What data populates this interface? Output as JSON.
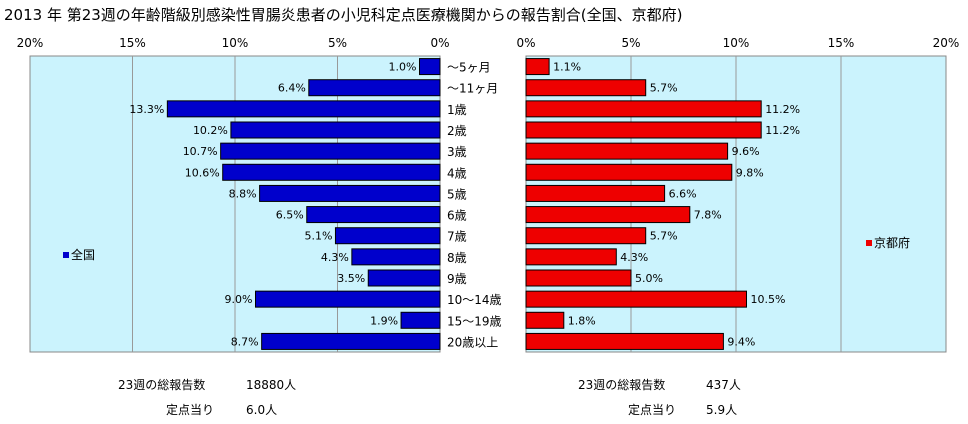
{
  "title": "2013 年 第23週の年齢階級別感染性胃腸炎患者の小児科定点医療機関からの報告割合(全国、京都府)",
  "chart_data": {
    "type": "bar",
    "orientation": "horizontal",
    "categories": [
      "～5ヶ月",
      "～11ヶ月",
      "1歳",
      "2歳",
      "3歳",
      "4歳",
      "5歳",
      "6歳",
      "7歳",
      "8歳",
      "9歳",
      "10～14歳",
      "15～19歳",
      "20歳以上"
    ],
    "unit": "%",
    "xlim": [
      0,
      20
    ],
    "xticks": [
      "20%",
      "15%",
      "10%",
      "5%",
      "0%"
    ],
    "xticks_right": [
      "0%",
      "5%",
      "10%",
      "15%",
      "20%"
    ],
    "grid": true,
    "series": [
      {
        "name": "全国",
        "color": "#0000cc",
        "plot_background": "#cbf3fd",
        "values": [
          1.0,
          6.4,
          13.3,
          10.2,
          10.7,
          10.6,
          8.8,
          6.5,
          5.1,
          4.3,
          3.5,
          9.0,
          1.9,
          8.7
        ],
        "labels": [
          "1.0%",
          "6.4%",
          "13.3%",
          "10.2%",
          "10.7%",
          "10.6%",
          "8.8%",
          "6.5%",
          "5.1%",
          "4.3%",
          "3.5%",
          "9.0%",
          "1.9%",
          "8.7%"
        ]
      },
      {
        "name": "京都府",
        "color": "#ee0000",
        "plot_background": "#cbf3fd",
        "values": [
          1.1,
          5.7,
          11.2,
          11.2,
          9.6,
          9.8,
          6.6,
          7.8,
          5.7,
          4.3,
          5.0,
          10.5,
          1.8,
          9.4
        ],
        "labels": [
          "1.1%",
          "5.7%",
          "11.2%",
          "11.2%",
          "9.6%",
          "9.8%",
          "6.6%",
          "7.8%",
          "5.7%",
          "4.3%",
          "5.0%",
          "10.5%",
          "1.8%",
          "9.4%"
        ]
      }
    ]
  },
  "footer": {
    "national": {
      "total_label": "23週の総報告数",
      "total_value": "18880人",
      "per_label": "定点当り",
      "per_value": "6.0人"
    },
    "kyoto": {
      "total_label": "23週の総報告数",
      "total_value": "437人",
      "per_label": "定点当り",
      "per_value": "5.9人"
    }
  }
}
